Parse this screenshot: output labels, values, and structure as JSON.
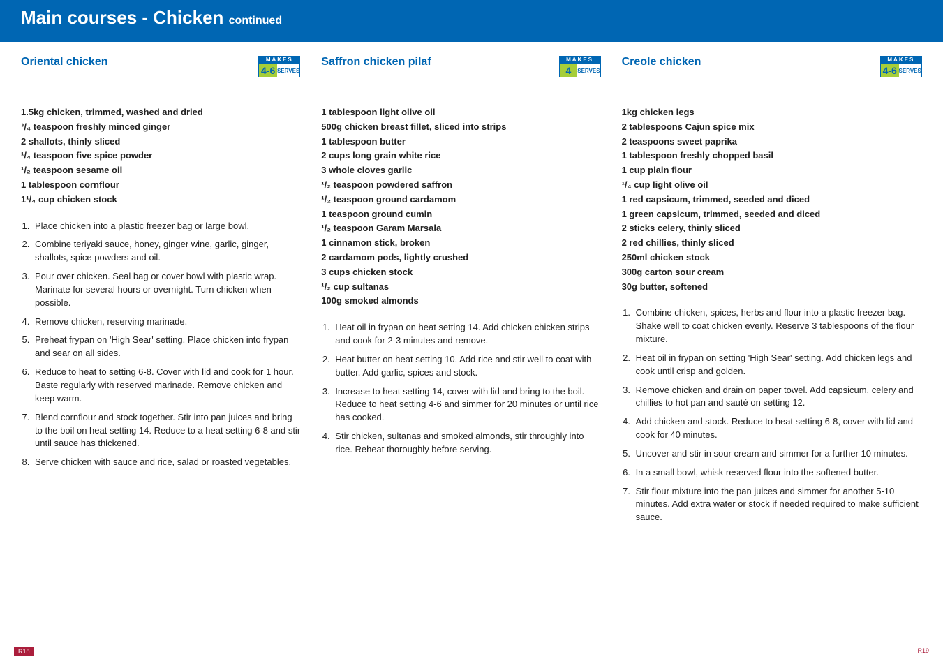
{
  "header": {
    "title_main": "Main courses - Chicken",
    "title_sub": "continued"
  },
  "badges": {
    "makes_label": "MAKES",
    "serves_label": "SERVES"
  },
  "recipes": [
    {
      "title": "Oriental chicken",
      "serves": "4-6",
      "ingredients": [
        "1.5kg chicken, trimmed, washed and dried",
        "³/₄ teaspoon freshly minced ginger",
        "2 shallots, thinly sliced",
        "¹/₄ teaspoon five spice powder",
        "¹/₂ teaspoon sesame oil",
        "1 tablespoon cornflour",
        "1¹/₄ cup chicken stock"
      ],
      "steps": [
        "Place chicken into a plastic freezer bag or large bowl.",
        "Combine teriyaki sauce, honey, ginger wine, garlic, ginger, shallots, spice powders and oil.",
        "Pour over chicken. Seal bag or cover bowl with plastic wrap. Marinate for several hours or overnight. Turn chicken when possible.",
        "Remove chicken, reserving marinade.",
        "Preheat frypan on 'High Sear' setting. Place chicken into frypan and sear on all sides.",
        "Reduce to heat to setting 6-8. Cover with lid and cook for 1 hour. Baste regularly with reserved marinade. Remove chicken and keep warm.",
        "Blend cornflour and stock together. Stir into pan juices and bring to the boil on heat setting 14. Reduce to a heat setting 6-8 and stir until sauce has thickened.",
        "Serve chicken with sauce and rice, salad or roasted vegetables."
      ]
    },
    {
      "title": "Saffron chicken pilaf",
      "serves": "4",
      "ingredients": [
        "1 tablespoon light olive oil",
        "500g chicken breast fillet, sliced into strips",
        "1 tablespoon butter",
        "2 cups long grain white rice",
        "3 whole cloves garlic",
        "¹/₂ teaspoon powdered saffron",
        "¹/₂ teaspoon ground cardamom",
        "1 teaspoon ground cumin",
        "¹/₂ teaspoon Garam Marsala",
        "1 cinnamon stick, broken",
        "2 cardamom pods, lightly crushed",
        "3 cups chicken stock",
        "¹/₂ cup sultanas",
        "100g smoked almonds"
      ],
      "steps": [
        "Heat oil in frypan on heat setting 14. Add chicken chicken strips and cook for 2-3 minutes and remove.",
        "Heat butter on heat setting 10. Add rice and stir well to coat with butter. Add garlic, spices and stock.",
        "Increase to heat setting 14, cover with lid and bring to the boil. Reduce to heat setting 4-6 and simmer for 20 minutes or until rice has cooked.",
        "Stir chicken, sultanas and smoked almonds, stir throughly into rice. Reheat thoroughly before serving."
      ]
    },
    {
      "title": "Creole chicken",
      "serves": "4-6",
      "ingredients": [
        "1kg chicken legs",
        "2 tablespoons Cajun spice mix",
        "2 teaspoons sweet paprika",
        "1 tablespoon freshly chopped basil",
        "1 cup plain flour",
        "¹/₄ cup light olive oil",
        "1 red capsicum, trimmed, seeded and diced",
        "1 green capsicum, trimmed, seeded and diced",
        "2 sticks celery, thinly sliced",
        "2 red chillies, thinly sliced",
        "250ml chicken stock",
        "300g carton sour cream",
        "30g butter, softened"
      ],
      "steps": [
        "Combine chicken, spices, herbs and flour into a plastic freezer bag. Shake well to coat chicken evenly. Reserve 3 tablespoons of the flour mixture.",
        "Heat oil in frypan on setting 'High Sear' setting. Add chicken legs and cook until crisp and golden.",
        "Remove chicken and drain on paper towel. Add capsicum, celery and chillies to hot pan and sauté on setting 12.",
        "Add chicken and stock. Reduce to heat setting 6-8, cover with lid and cook for 40 minutes.",
        "Uncover and stir in sour cream and simmer for a further 10 minutes.",
        "In a small bowl, whisk reserved flour into the softened butter.",
        "Stir flour mixture into the pan juices and simmer for another 5-10 minutes. Add extra water or stock if needed required to make sufficient sauce."
      ]
    }
  ],
  "footer": {
    "left": "R18",
    "right": "R19"
  },
  "colors": {
    "brand_blue": "#0066b3",
    "brand_green": "#a6ce39",
    "footer_red": "#ab1e3c"
  }
}
